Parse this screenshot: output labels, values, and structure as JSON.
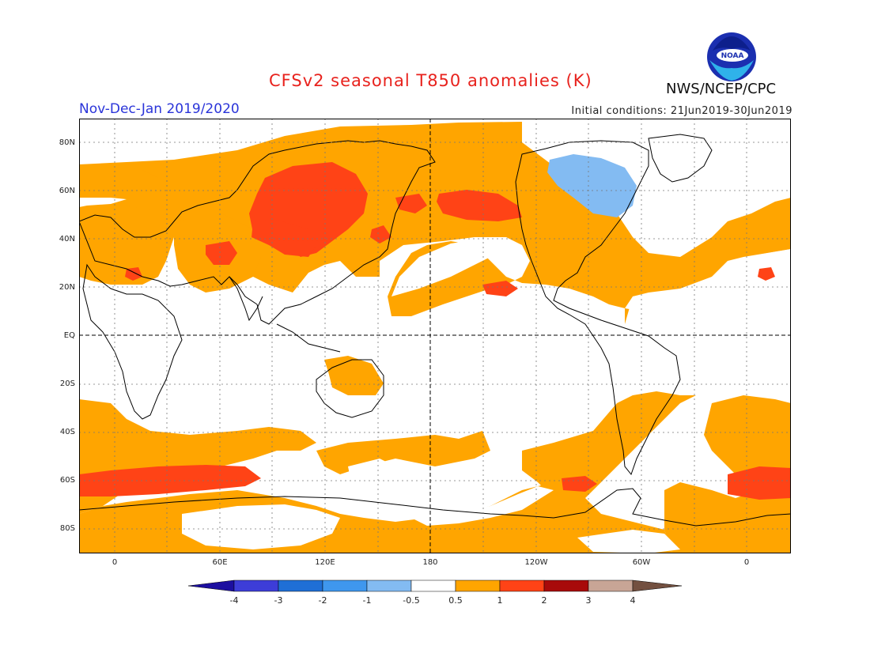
{
  "title": "CFSv2 seasonal T850 anomalies (K)",
  "period": "Nov-Dec-Jan 2019/2020",
  "initial_conditions": "Initial conditions: 21Jun2019-30Jun2019",
  "agency": "NWS/NCEP/CPC",
  "logo_text": "NOAA",
  "lat_labels": [
    "80N",
    "60N",
    "40N",
    "20N",
    "EQ",
    "20S",
    "40S",
    "60S",
    "80S"
  ],
  "lon_labels": [
    "0",
    "60E",
    "120E",
    "180",
    "120W",
    "60W",
    "0"
  ],
  "colorbar": {
    "tick_labels": [
      "-4",
      "-3",
      "-2",
      "-1",
      "-0.5",
      "0.5",
      "1",
      "2",
      "3",
      "4"
    ],
    "colors": [
      "#1c0fa0",
      "#3d3dd8",
      "#1f6fd6",
      "#3f97ee",
      "#83bbf2",
      "#ffffff",
      "#ffa500",
      "#ff4316",
      "#a80a0a",
      "#c8a596",
      "#735040"
    ]
  },
  "map_colors": {
    "warm_0_5_1": "#ffa500",
    "warm_1_2": "#ff4316",
    "cool_minus1_minus0_5": "#83bbf2",
    "coast": "#000000",
    "grid": "#777777"
  }
}
